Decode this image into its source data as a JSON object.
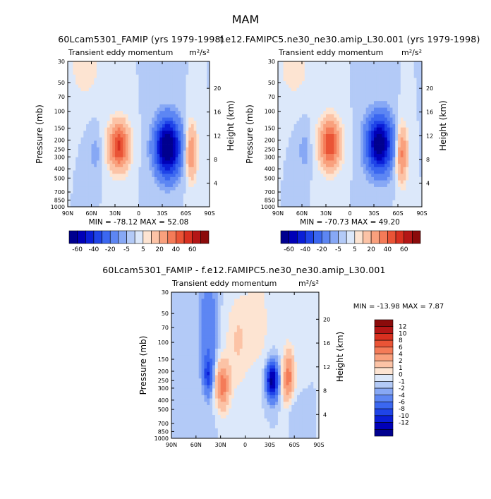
{
  "figure_title": "MAM",
  "chart_data": [
    {
      "type": "heatmap",
      "id": "top-left",
      "title": "60Lcam5301_FAMIP (yrs 1979-1998)",
      "subtitle_left": "Transient eddy momentum",
      "subtitle_right": "m²/s²",
      "ylabel": "Pressure (mb)",
      "ylabel_right": "Height (km)",
      "x_ticks": [
        "90N",
        "60N",
        "30N",
        "0",
        "30S",
        "60S",
        "90S"
      ],
      "y_ticks": [
        "30",
        "50",
        "70",
        "100",
        "150",
        "200",
        "250",
        "300",
        "400",
        "500",
        "700",
        "850",
        "1000"
      ],
      "height_ticks": [
        "20",
        "16",
        "12",
        "8",
        "4"
      ],
      "stats": "MIN = -78.12   MAX =  52.08",
      "features": [
        {
          "lat": -25,
          "p": 230,
          "value": 52,
          "spread_lat": 9,
          "spread_logp": 0.17
        },
        {
          "lat": 37,
          "p": 240,
          "value": -78,
          "spread_lat": 11,
          "spread_logp": 0.2
        },
        {
          "lat": 67,
          "p": 270,
          "value": 30,
          "spread_lat": 5,
          "spread_logp": 0.2
        },
        {
          "lat": -55,
          "p": 280,
          "value": -8,
          "spread_lat": 5,
          "spread_logp": 0.14
        },
        {
          "lat": -68,
          "p": 35,
          "value": 10,
          "spread_lat": 12,
          "spread_logp": 0.2
        }
      ]
    },
    {
      "type": "heatmap",
      "id": "top-right",
      "title": "f.e12.FAMIPC5.ne30_ne30.amip_L30.001 (yrs 1979-1998)",
      "subtitle_left": "Transient eddy momentum",
      "subtitle_right": "m²/s²",
      "ylabel": "Pressure (mb)",
      "ylabel_right": "Height (km)",
      "x_ticks": [
        "90N",
        "60N",
        "30N",
        "0",
        "30S",
        "60S",
        "90S"
      ],
      "y_ticks": [
        "30",
        "50",
        "70",
        "100",
        "150",
        "200",
        "250",
        "300",
        "400",
        "500",
        "700",
        "850",
        "1000"
      ],
      "height_ticks": [
        "20",
        "16",
        "12",
        "8",
        "4"
      ],
      "stats": "MIN = -70.73   MAX =  49.20",
      "features": [
        {
          "lat": -25,
          "p": 220,
          "value": 49,
          "spread_lat": 9,
          "spread_logp": 0.18
        },
        {
          "lat": 37,
          "p": 220,
          "value": -70,
          "spread_lat": 11,
          "spread_logp": 0.2
        },
        {
          "lat": 65,
          "p": 280,
          "value": 33,
          "spread_lat": 5,
          "spread_logp": 0.2
        },
        {
          "lat": -57,
          "p": 260,
          "value": -9,
          "spread_lat": 5,
          "spread_logp": 0.14
        },
        {
          "lat": -70,
          "p": 35,
          "value": 10,
          "spread_lat": 12,
          "spread_logp": 0.2
        }
      ]
    },
    {
      "type": "heatmap",
      "id": "bottom",
      "title": "60Lcam5301_FAMIP - f.e12.FAMIPC5.ne30_ne30.amip_L30.001",
      "subtitle_left": "Transient eddy momentum",
      "subtitle_right": "m²/s²",
      "ylabel": "Pressure (mb)",
      "ylabel_right": "Height (km)",
      "x_ticks": [
        "90N",
        "60N",
        "30N",
        "0",
        "30S",
        "60S",
        "90S"
      ],
      "y_ticks": [
        "30",
        "50",
        "70",
        "100",
        "150",
        "200",
        "250",
        "300",
        "400",
        "500",
        "700",
        "850",
        "1000"
      ],
      "height_ticks": [
        "20",
        "16",
        "12",
        "8",
        "4"
      ],
      "stats": "MIN = -13.98   MAX =   7.87",
      "features": [
        {
          "lat": -45,
          "p": 70,
          "value": -4,
          "spread_lat": 7,
          "spread_logp": 0.45
        },
        {
          "lat": -45,
          "p": 220,
          "value": -6,
          "spread_lat": 4,
          "spread_logp": 0.12
        },
        {
          "lat": -28,
          "p": 280,
          "value": 7,
          "spread_lat": 6,
          "spread_logp": 0.17
        },
        {
          "lat": 33,
          "p": 250,
          "value": -13,
          "spread_lat": 5,
          "spread_logp": 0.13
        },
        {
          "lat": 53,
          "p": 260,
          "value": 7.5,
          "spread_lat": 5,
          "spread_logp": 0.22
        },
        {
          "lat": 55,
          "p": 450,
          "value": -3,
          "spread_lat": 5,
          "spread_logp": 0.15
        },
        {
          "lat": -10,
          "p": 100,
          "value": 2,
          "spread_lat": 10,
          "spread_logp": 0.35
        },
        {
          "lat": 15,
          "p": 60,
          "value": 1.5,
          "spread_lat": 12,
          "spread_logp": 0.4
        }
      ]
    }
  ],
  "colorbar_top": {
    "labels": [
      "-60",
      "-40",
      "-20",
      "-5",
      "5",
      "20",
      "40",
      "60"
    ],
    "levels": [
      -70,
      -60,
      -50,
      -40,
      -30,
      -20,
      -10,
      -5,
      0,
      5,
      10,
      20,
      30,
      40,
      50,
      60,
      70
    ],
    "colors": [
      "#00008f",
      "#0000b8",
      "#0a1ed7",
      "#1f44e8",
      "#3b67f0",
      "#5d86f3",
      "#87a8f5",
      "#b3caf7",
      "#dce8fa",
      "#fde4d2",
      "#fcc3a6",
      "#f9a07d",
      "#f47b58",
      "#ea5436",
      "#d83020",
      "#b41616",
      "#8b0b0b"
    ]
  },
  "colorbar_diff": {
    "labels": [
      "12",
      "10",
      "8",
      "6",
      "4",
      "2",
      "1",
      "0",
      "-1",
      "-2",
      "-4",
      "-6",
      "-8",
      "-10",
      "-12"
    ],
    "levels": [
      -14,
      -12,
      -10,
      -8,
      -6,
      -4,
      -2,
      -1,
      0,
      1,
      2,
      4,
      6,
      8,
      10,
      12,
      14
    ],
    "colors": [
      "#00008f",
      "#0000b8",
      "#0a1ed7",
      "#1f44e8",
      "#3b67f0",
      "#5d86f3",
      "#87a8f5",
      "#b3caf7",
      "#dce8fa",
      "#fde4d2",
      "#fcc3a6",
      "#f9a07d",
      "#f47b58",
      "#ea5436",
      "#d83020",
      "#b41616",
      "#8b0b0b"
    ]
  }
}
